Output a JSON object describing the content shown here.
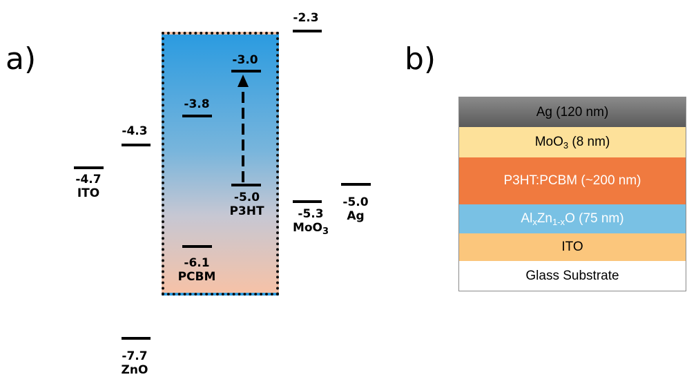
{
  "panel_labels": {
    "a": "a)",
    "b": "b)"
  },
  "energy_levels": {
    "ito": {
      "value": "-4.7",
      "name": "ITO"
    },
    "zno_top": {
      "value": "-4.3"
    },
    "zno_bottom": {
      "value": "-7.7",
      "name": "ZnO"
    },
    "pcbm_top": {
      "value": "-3.8"
    },
    "pcbm_bottom": {
      "value": "-6.1",
      "name": "PCBM"
    },
    "p3ht_top": {
      "value": "-3.0"
    },
    "p3ht_bottom": {
      "value": "-5.0",
      "name": "P3HT"
    },
    "moo3_top": {
      "value": "-2.3"
    },
    "moo3_bottom": {
      "value": "-5.3",
      "name_main": "MoO",
      "name_sub": "3"
    },
    "ag": {
      "value": "-5.0",
      "name": "Ag"
    }
  },
  "active_box_colors": {
    "top": "#2b9be0",
    "bottom": "#f6c2a7"
  },
  "device_stack": [
    {
      "id": "ag",
      "text": "Ag (120 nm)",
      "color": "#6e6e6e"
    },
    {
      "id": "moo3",
      "pre": "MoO",
      "sub": "3",
      "post": " (8 nm)",
      "color": "#fde19a"
    },
    {
      "id": "active",
      "text": "P3HT:PCBM (~200 nm)",
      "color": "#f07a3f"
    },
    {
      "id": "azo",
      "pre": "Al",
      "sub1": "x",
      "mid": "Zn",
      "sub2": "1-x",
      "post": "O (75 nm)",
      "color": "#79c1e4"
    },
    {
      "id": "ito",
      "text": "ITO",
      "color": "#fbc67c"
    },
    {
      "id": "glass",
      "text": "Glass Substrate",
      "color": "#ffffff"
    }
  ]
}
